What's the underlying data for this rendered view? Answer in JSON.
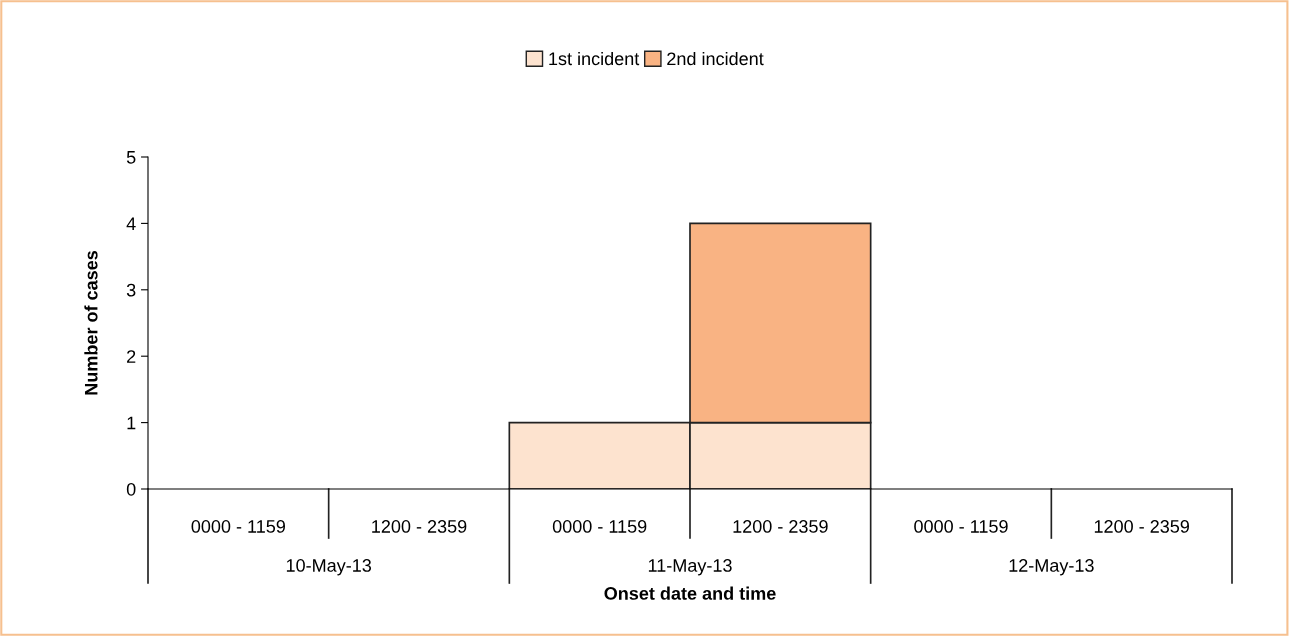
{
  "chart_data": {
    "type": "bar",
    "stacked": true,
    "xlabel": "Onset date and time",
    "ylabel": "Number of cases",
    "categories": [
      "0000 - 1159",
      "1200 - 2359",
      "0000 - 1159",
      "1200 - 2359",
      "0000 - 1159",
      "1200 - 2359"
    ],
    "series": [
      {
        "name": "1st incident",
        "color": "#fde3cf",
        "values": [
          0,
          0,
          1,
          1,
          0,
          0
        ]
      },
      {
        "name": "2nd incident",
        "color": "#f9b383",
        "values": [
          0,
          0,
          0,
          3,
          0,
          0
        ]
      }
    ],
    "annotations": [
      "10-May-13",
      "11-May-13",
      "12-May-13"
    ],
    "ylim": [
      0,
      5
    ],
    "yticks": [
      0,
      1,
      2,
      3,
      4,
      5
    ],
    "grid": false,
    "legend": "top"
  }
}
